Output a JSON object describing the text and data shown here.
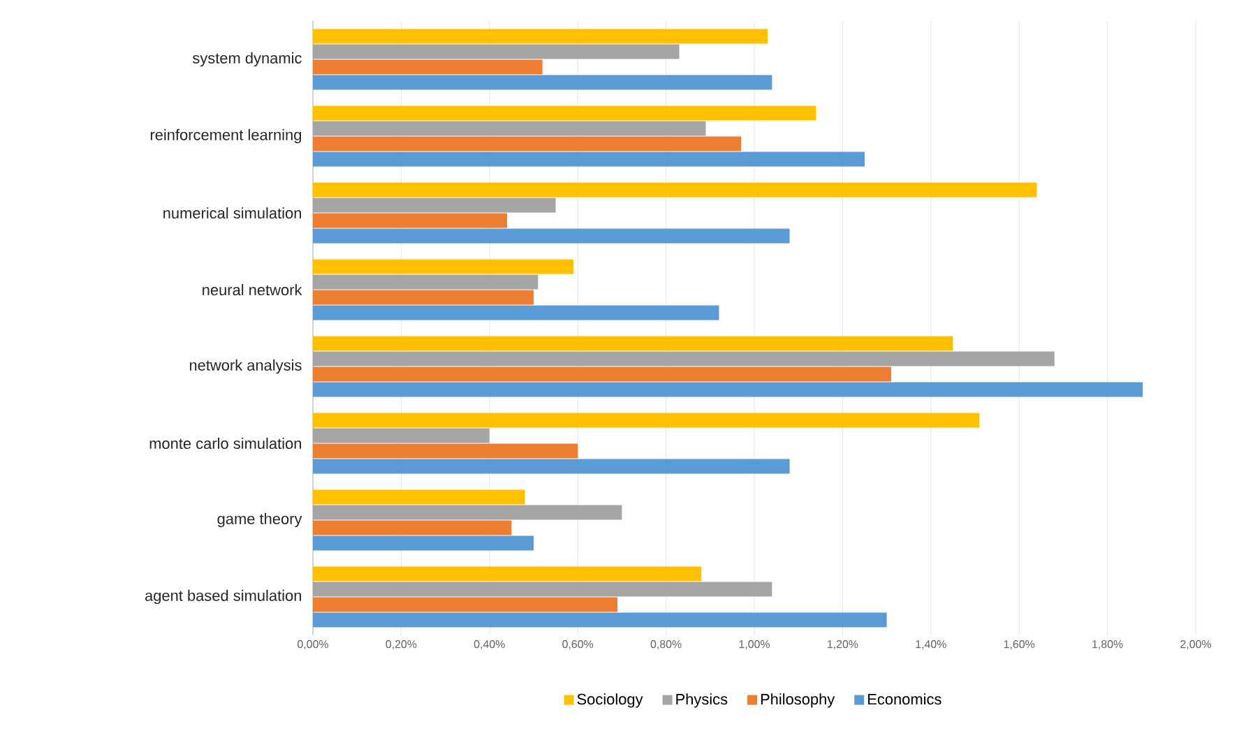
{
  "chart_data": {
    "type": "bar",
    "orientation": "horizontal",
    "categories": [
      "system dynamic",
      "reinforcement learning",
      "numerical simulation",
      "neural network",
      "network analysis",
      "monte carlo simulation",
      "game theory",
      "agent based simulation"
    ],
    "series": [
      {
        "name": "Sociology",
        "color": "#ffc000",
        "values": [
          1.03,
          1.14,
          1.64,
          0.59,
          1.45,
          1.51,
          0.48,
          0.88
        ]
      },
      {
        "name": "Physics",
        "color": "#a5a5a5",
        "values": [
          0.83,
          0.89,
          0.55,
          0.51,
          1.68,
          0.4,
          0.7,
          1.04
        ]
      },
      {
        "name": "Philosophy",
        "color": "#ed7d31",
        "values": [
          0.52,
          0.97,
          0.44,
          0.5,
          1.31,
          0.6,
          0.45,
          0.69
        ]
      },
      {
        "name": "Economics",
        "color": "#5b9bd5",
        "values": [
          1.04,
          1.25,
          1.08,
          0.92,
          1.88,
          1.08,
          0.5,
          1.3
        ]
      }
    ],
    "xlim": [
      0,
      2.0
    ],
    "xticks": [
      {
        "value": 0,
        "label": "0,00%"
      },
      {
        "value": 0.2,
        "label": "0,20%"
      },
      {
        "value": 0.4,
        "label": "0,40%"
      },
      {
        "value": 0.6,
        "label": "0,60%"
      },
      {
        "value": 0.8,
        "label": "0,80%"
      },
      {
        "value": 1.0,
        "label": "1,00%"
      },
      {
        "value": 1.2,
        "label": "1,20%"
      },
      {
        "value": 1.4,
        "label": "1,40%"
      },
      {
        "value": 1.6,
        "label": "1,60%"
      },
      {
        "value": 1.8,
        "label": "1,80%"
      },
      {
        "value": 2.0,
        "label": "2,00%"
      }
    ],
    "grid": "x",
    "legend": "bottom"
  }
}
